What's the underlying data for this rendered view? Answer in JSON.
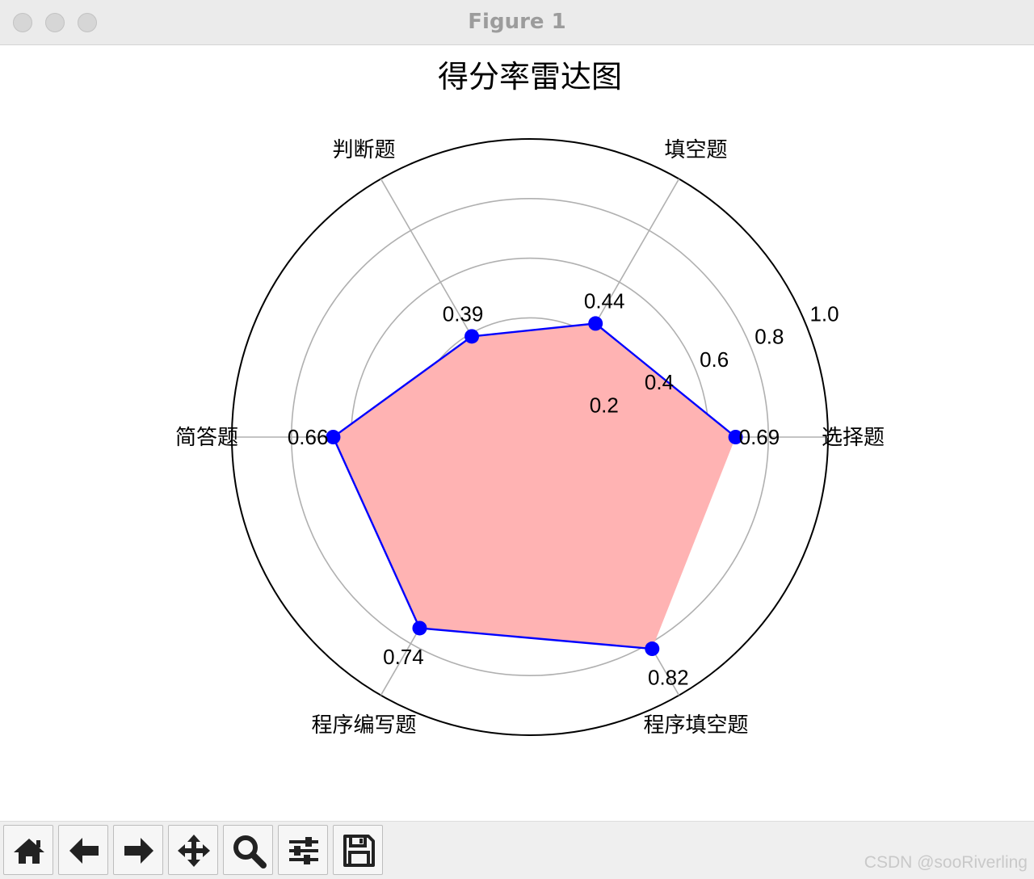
{
  "window": {
    "title": "Figure 1"
  },
  "chart_data": {
    "type": "radar",
    "title": "得分率雷达图",
    "categories": [
      "选择题",
      "填空题",
      "判断题",
      "简答题",
      "程序编写题",
      "程序填空题"
    ],
    "values": [
      0.69,
      0.44,
      0.39,
      0.66,
      0.74,
      0.82
    ],
    "value_labels": [
      "0.69",
      "0.44",
      "0.39",
      "0.66",
      "0.74",
      "0.82"
    ],
    "radial_ticks": [
      "0.2",
      "0.4",
      "0.6",
      "0.8",
      "1.0"
    ],
    "radial_tick_values": [
      0.2,
      0.4,
      0.6,
      0.8,
      1.0
    ],
    "rlim": [
      0,
      1.0
    ],
    "grid": true,
    "line_color": "#0000ff",
    "fill_color": "#ffb3b3",
    "marker_color": "#0000ff",
    "grid_color": "#b0b0b0"
  },
  "toolbar": {
    "buttons": [
      {
        "name": "home-button",
        "icon": "home-icon"
      },
      {
        "name": "back-button",
        "icon": "arrow-left-icon"
      },
      {
        "name": "forward-button",
        "icon": "arrow-right-icon"
      },
      {
        "name": "pan-button",
        "icon": "move-icon"
      },
      {
        "name": "zoom-button",
        "icon": "magnifier-icon"
      },
      {
        "name": "configure-subplots-button",
        "icon": "sliders-icon"
      },
      {
        "name": "save-button",
        "icon": "floppy-disk-icon"
      }
    ]
  },
  "watermark": "CSDN @sooRiverling"
}
